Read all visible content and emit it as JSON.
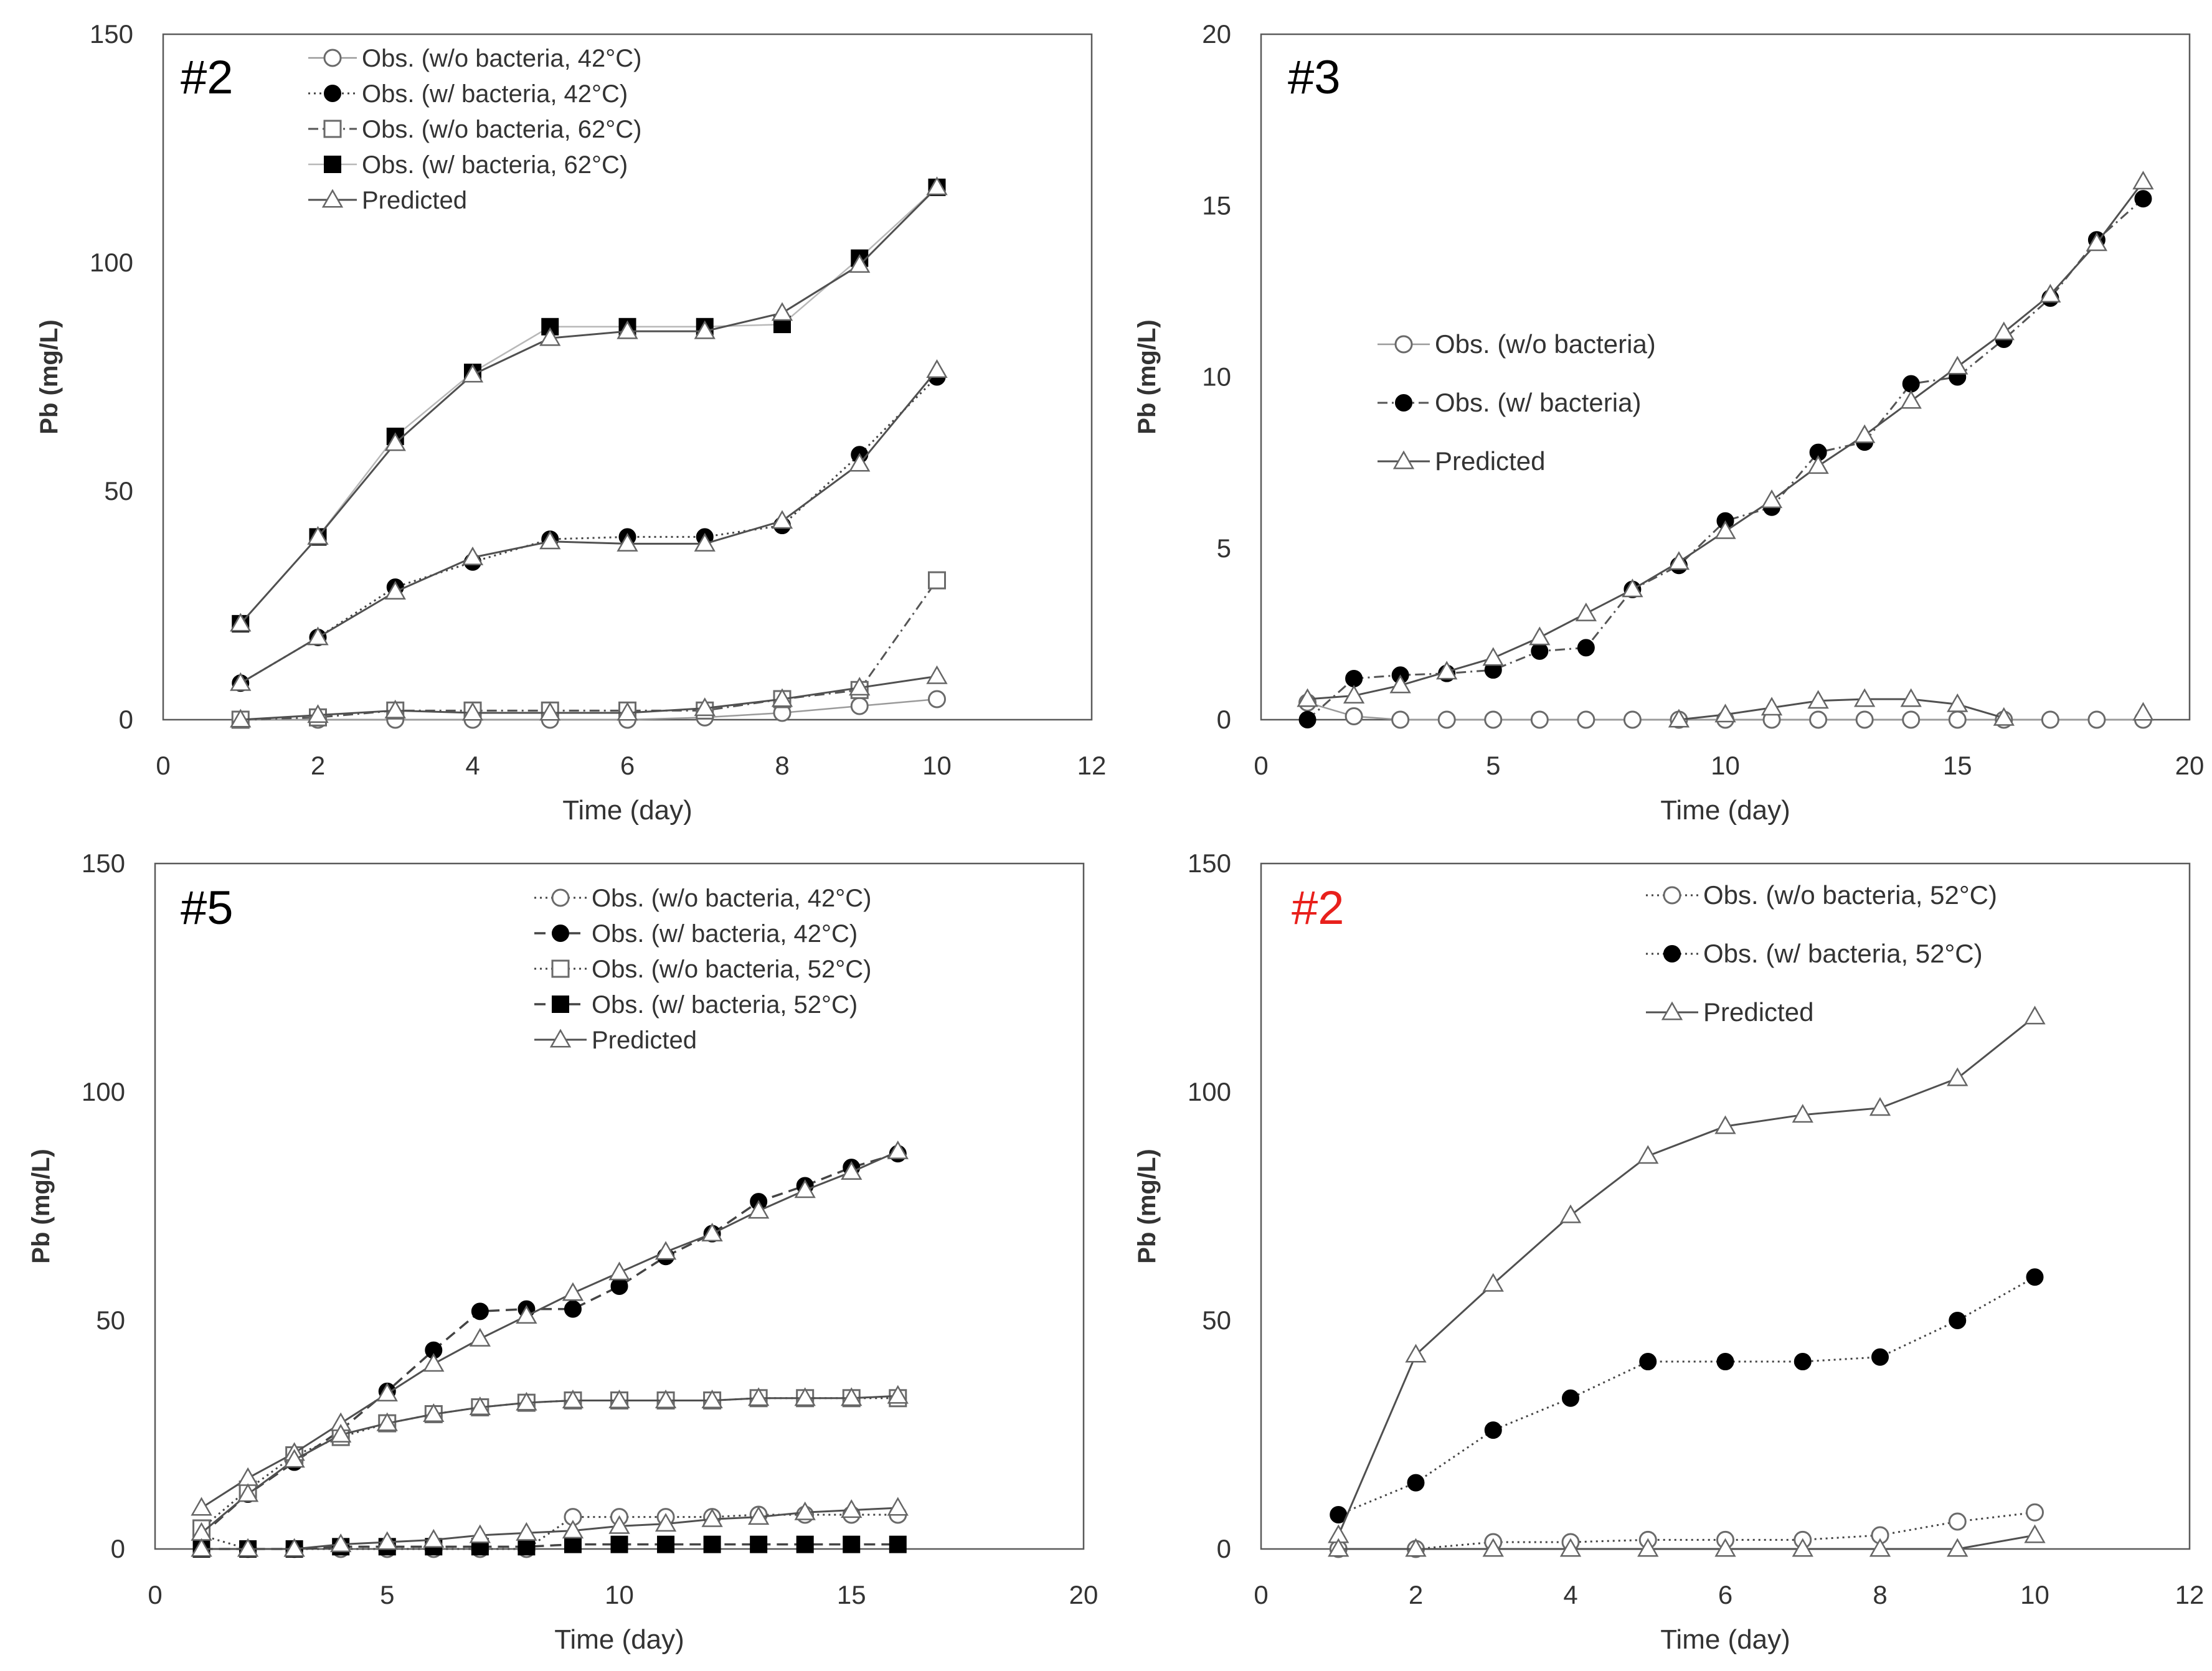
{
  "chart_data": [
    {
      "type": "line",
      "panel_label": "#2",
      "panel_label_color": "#000000",
      "xlabel": "Time (day)",
      "ylabel": "Pb (mg/L)",
      "xlim": [
        0,
        12
      ],
      "ylim": [
        0,
        150
      ],
      "xticks": [
        0,
        2,
        4,
        6,
        8,
        10,
        12
      ],
      "yticks": [
        0,
        50,
        100,
        150
      ],
      "legend_position": "top-left",
      "series": [
        {
          "name": "Obs. (w/o bacteria, 42°C)",
          "marker": "circle-open",
          "line": "solid-gray",
          "x": [
            1,
            2,
            3,
            4,
            5,
            6,
            7,
            8,
            9,
            10
          ],
          "values": [
            0,
            0,
            0,
            0,
            0,
            0,
            0.5,
            1.5,
            3,
            4.5
          ]
        },
        {
          "name": "Obs. (w/ bacteria, 42°C)",
          "marker": "circle-filled",
          "line": "dotted",
          "x": [
            1,
            2,
            3,
            4,
            5,
            6,
            7,
            8,
            9,
            10
          ],
          "values": [
            8,
            18,
            29,
            34.5,
            39.5,
            40,
            40,
            42.5,
            58,
            75
          ]
        },
        {
          "name": "Obs. (w/o bacteria, 62°C)",
          "marker": "square-open",
          "line": "dashdot",
          "x": [
            1,
            2,
            3,
            4,
            5,
            6,
            7,
            8,
            9,
            10
          ],
          "values": [
            0,
            0.5,
            2,
            2,
            2,
            2,
            2,
            4.5,
            6.5,
            30.5
          ]
        },
        {
          "name": "Obs. (w/ bacteria, 62°C)",
          "marker": "square-filled",
          "line": "solid-light",
          "x": [
            1,
            2,
            3,
            4,
            5,
            6,
            7,
            8,
            9,
            10
          ],
          "values": [
            21,
            40,
            62,
            76,
            86,
            86,
            86,
            86.5,
            101,
            116.5
          ]
        },
        {
          "name": "Predicted",
          "marker": "triangle-open",
          "line": "solid",
          "x": [
            1,
            2,
            3,
            4,
            5,
            6,
            7,
            8,
            9,
            10
          ],
          "values": [
            0,
            1,
            2,
            1.5,
            1.5,
            1.5,
            2.5,
            4.5,
            7,
            9.5
          ],
          "show_in_legend": true
        },
        {
          "name": "",
          "marker": "triangle-open",
          "line": "solid",
          "x": [
            1,
            2,
            3,
            4,
            5,
            6,
            7,
            8,
            9,
            10
          ],
          "values": [
            8,
            18,
            28,
            35.5,
            39,
            38.5,
            38.5,
            43.5,
            56,
            76.5
          ],
          "show_in_legend": false
        },
        {
          "name": "",
          "marker": "triangle-open",
          "line": "solid",
          "x": [
            1,
            2,
            3,
            4,
            5,
            6,
            7,
            8,
            9,
            10
          ],
          "values": [
            21,
            40,
            60.5,
            75.5,
            83.5,
            85,
            85,
            89,
            99.5,
            116.5
          ],
          "show_in_legend": false
        }
      ]
    },
    {
      "type": "line",
      "panel_label": "#3",
      "panel_label_color": "#000000",
      "xlabel": "Time (day)",
      "ylabel": "Pb (mg/L)",
      "xlim": [
        0,
        20
      ],
      "ylim": [
        0,
        20
      ],
      "xticks": [
        0,
        5,
        10,
        15,
        20
      ],
      "yticks": [
        0,
        5,
        10,
        15,
        20
      ],
      "legend_position": "middle-left",
      "series": [
        {
          "name": "Obs. (w/o bacteria)",
          "marker": "circle-open",
          "line": "solid-gray",
          "x": [
            1,
            2,
            3,
            4,
            5,
            6,
            7,
            8,
            9,
            10,
            11,
            12,
            13,
            14,
            15,
            16,
            17,
            18,
            19
          ],
          "values": [
            0.5,
            0.1,
            0,
            0,
            0,
            0,
            0,
            0,
            0,
            0,
            0,
            0,
            0,
            0,
            0,
            0,
            0,
            0,
            0
          ]
        },
        {
          "name": "Obs. (w/ bacteria)",
          "marker": "circle-filled",
          "line": "dashdot",
          "x": [
            1,
            2,
            3,
            4,
            5,
            6,
            7,
            8,
            9,
            10,
            11,
            12,
            13,
            14,
            15,
            16,
            17,
            18,
            19
          ],
          "values": [
            0,
            1.2,
            1.3,
            1.35,
            1.45,
            2,
            2.1,
            3.8,
            4.5,
            5.8,
            6.2,
            7.8,
            8.1,
            9.8,
            10,
            11.1,
            12.3,
            14,
            15.2
          ]
        },
        {
          "name": "Predicted",
          "marker": "triangle-open",
          "line": "solid",
          "x": [
            1,
            2,
            3,
            4,
            5,
            6,
            7,
            8,
            9,
            10,
            11,
            12,
            13,
            14,
            15,
            16,
            17,
            18,
            19
          ],
          "values": [
            0.6,
            0.7,
            1,
            1.4,
            1.8,
            2.4,
            3.1,
            3.8,
            4.6,
            5.5,
            6.4,
            7.4,
            8.3,
            9.3,
            10.3,
            11.3,
            12.4,
            13.9,
            15.7
          ],
          "show_in_legend": true
        },
        {
          "name": "",
          "marker": "triangle-open",
          "line": "solid",
          "x": [
            9,
            10,
            11,
            12,
            13,
            14,
            15,
            16
          ],
          "values": [
            0,
            0.15,
            0.35,
            0.55,
            0.6,
            0.6,
            0.45,
            0.05
          ],
          "show_in_legend": false
        },
        {
          "name": "",
          "marker": "triangle-open",
          "line": "none",
          "x": [
            19
          ],
          "values": [
            0.2
          ],
          "show_in_legend": false
        }
      ]
    },
    {
      "type": "line",
      "panel_label": "#5",
      "panel_label_color": "#000000",
      "xlabel": "Time (day)",
      "ylabel": "Pb (mg/L)",
      "xlim": [
        0,
        20
      ],
      "ylim": [
        0,
        150
      ],
      "xticks": [
        0,
        5,
        10,
        15,
        20
      ],
      "yticks": [
        0,
        50,
        100,
        150
      ],
      "legend_position": "top-right",
      "series": [
        {
          "name": "Obs. (w/o bacteria, 42°C)",
          "marker": "circle-open",
          "line": "dotted",
          "x": [
            1,
            2,
            3,
            4,
            5,
            6,
            7,
            8,
            9,
            10,
            11,
            12,
            13,
            14,
            15,
            16
          ],
          "values": [
            3,
            0,
            0,
            0,
            0,
            0,
            0,
            0,
            7,
            7,
            7,
            7,
            7.5,
            7.5,
            7.5,
            7.5
          ]
        },
        {
          "name": "Obs. (w/ bacteria, 42°C)",
          "marker": "circle-filled",
          "line": "dashed",
          "x": [
            1,
            2,
            3,
            4,
            5,
            6,
            7,
            8,
            9,
            10,
            11,
            12,
            13,
            14,
            15,
            16
          ],
          "values": [
            3,
            12,
            19,
            26,
            34.5,
            43.5,
            52,
            52.5,
            52.5,
            57.5,
            64,
            69,
            76,
            79.5,
            83.5,
            86.5
          ]
        },
        {
          "name": "Obs. (w/o bacteria, 52°C)",
          "marker": "square-open",
          "line": "dotted",
          "x": [
            1,
            2,
            3,
            4,
            5,
            6,
            7,
            8,
            9,
            10,
            11,
            12,
            13,
            14,
            15,
            16
          ],
          "values": [
            4.5,
            13,
            20.5,
            24.5,
            27.5,
            29.5,
            31,
            32,
            32.5,
            32.5,
            32.5,
            32.5,
            33,
            33,
            33,
            33
          ]
        },
        {
          "name": "Obs. (w/ bacteria, 52°C)",
          "marker": "square-filled",
          "line": "dashed",
          "x": [
            1,
            2,
            3,
            4,
            5,
            6,
            7,
            8,
            9,
            10,
            11,
            12,
            13,
            14,
            15,
            16
          ],
          "values": [
            0,
            0,
            0,
            0.5,
            0.5,
            0.5,
            0.5,
            0.5,
            1,
            1,
            1,
            1,
            1,
            1,
            1,
            1
          ]
        },
        {
          "name": "Predicted",
          "marker": "triangle-open",
          "line": "solid",
          "x": [
            1,
            2,
            3,
            4,
            5,
            6,
            7,
            8,
            9,
            10,
            11,
            12,
            13,
            14,
            15,
            16
          ],
          "values": [
            9,
            15.5,
            21,
            27.5,
            34,
            40.5,
            46,
            51,
            56,
            60.5,
            65,
            69,
            74,
            78.5,
            82.5,
            87
          ],
          "show_in_legend": true
        },
        {
          "name": "",
          "marker": "triangle-open",
          "line": "solid",
          "x": [
            1,
            2,
            3,
            4,
            5,
            6,
            7,
            8,
            9,
            10,
            11,
            12,
            13,
            14,
            15,
            16
          ],
          "values": [
            3.5,
            12,
            19.5,
            25,
            27.5,
            29.5,
            31,
            32,
            32.5,
            32.5,
            32.5,
            32.5,
            33,
            33,
            33,
            33.5
          ],
          "show_in_legend": false
        },
        {
          "name": "",
          "marker": "triangle-open",
          "line": "solid",
          "x": [
            1,
            2,
            3,
            4,
            5,
            6,
            7,
            8,
            9,
            10,
            11,
            12,
            13,
            14,
            15,
            16
          ],
          "values": [
            0,
            0,
            0,
            1,
            1.5,
            2,
            3,
            3.5,
            4,
            5,
            5.5,
            6.5,
            7,
            8,
            8.5,
            9
          ],
          "show_in_legend": false
        }
      ]
    },
    {
      "type": "line",
      "panel_label": "#2",
      "panel_label_color": "#e8201c",
      "xlabel": "Time (day)",
      "ylabel": "Pb (mg/L)",
      "xlim": [
        0,
        12
      ],
      "ylim": [
        0,
        150
      ],
      "xticks": [
        0,
        2,
        4,
        6,
        8,
        10,
        12
      ],
      "yticks": [
        0,
        50,
        100,
        150
      ],
      "legend_position": "top-center",
      "series": [
        {
          "name": "Obs. (w/o bacteria, 52°C)",
          "marker": "circle-open",
          "line": "dotted",
          "x": [
            1,
            2,
            3,
            4,
            5,
            6,
            7,
            8,
            9,
            10
          ],
          "values": [
            0,
            0,
            1.5,
            1.5,
            2,
            2,
            2,
            3,
            6,
            8
          ]
        },
        {
          "name": "Obs. (w/ bacteria, 52°C)",
          "marker": "circle-filled",
          "line": "dotted",
          "x": [
            1,
            2,
            3,
            4,
            5,
            6,
            7,
            8,
            9,
            10
          ],
          "values": [
            7.5,
            14.5,
            26,
            33,
            41,
            41,
            41,
            42,
            50,
            59.5
          ]
        },
        {
          "name": "Predicted",
          "marker": "triangle-open",
          "line": "solid",
          "x": [
            1,
            2,
            3,
            4,
            5,
            6,
            7,
            8,
            9,
            10
          ],
          "values": [
            3,
            42.5,
            58,
            73,
            86,
            92.5,
            95,
            96.5,
            103,
            116.5
          ],
          "show_in_legend": true
        },
        {
          "name": "",
          "marker": "triangle-open",
          "line": "solid",
          "x": [
            1,
            2,
            3,
            4,
            5,
            6,
            7,
            8,
            9,
            10
          ],
          "values": [
            0,
            0,
            0,
            0,
            0,
            0,
            0,
            0,
            0,
            3
          ],
          "show_in_legend": false
        }
      ]
    }
  ]
}
